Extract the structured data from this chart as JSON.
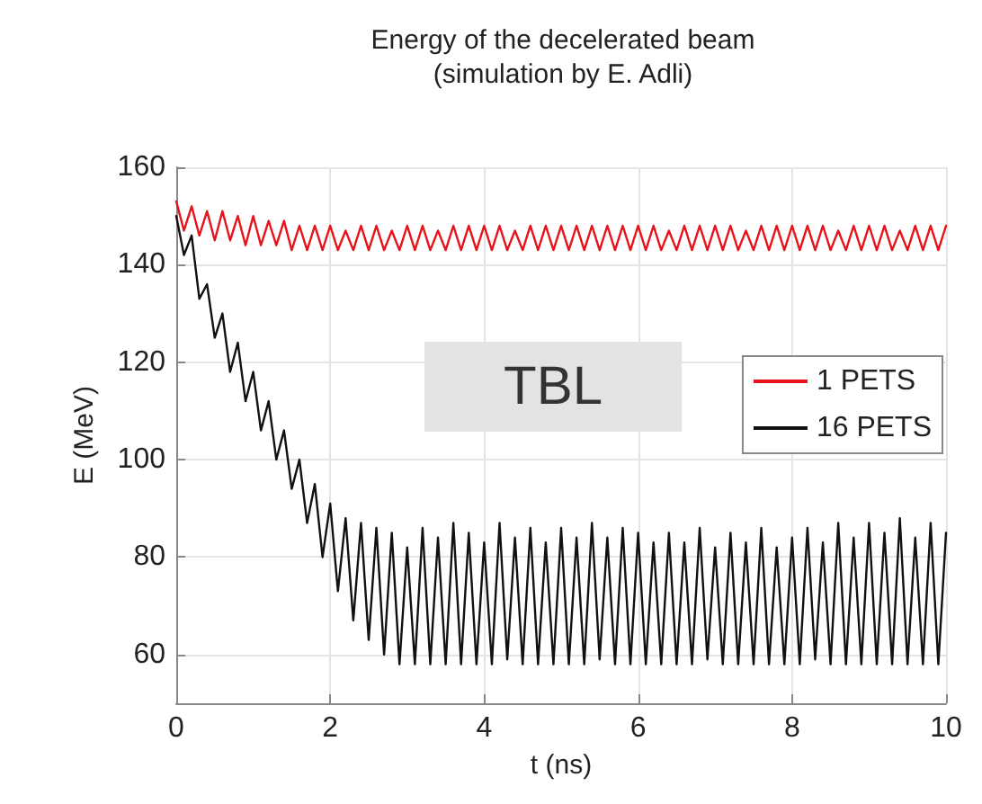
{
  "chart_data": {
    "type": "line",
    "title": "Energy of the decelerated beam",
    "subtitle": "(simulation by E. Adli)",
    "xlabel": "t (ns)",
    "ylabel": "E (MeV)",
    "annotations": [
      "TBL"
    ],
    "x": [
      0,
      0.1,
      0.2,
      0.3,
      0.4,
      0.5,
      0.6,
      0.7,
      0.8,
      0.9,
      1,
      1.1,
      1.2,
      1.3,
      1.4,
      1.5,
      1.6,
      1.7,
      1.8,
      1.9,
      2,
      2.1,
      2.2,
      2.3,
      2.4,
      2.5,
      2.6,
      2.7,
      2.8,
      2.9,
      3,
      3.1,
      3.2,
      3.3,
      3.4,
      3.5,
      3.6,
      3.7,
      3.8,
      3.9,
      4,
      4.1,
      4.2,
      4.3,
      4.4,
      4.5,
      4.6,
      4.7,
      4.8,
      4.9,
      5,
      5.1,
      5.2,
      5.3,
      5.4,
      5.5,
      5.6,
      5.7,
      5.8,
      5.9,
      6,
      6.1,
      6.2,
      6.3,
      6.4,
      6.5,
      6.6,
      6.7,
      6.8,
      6.9,
      7,
      7.1,
      7.2,
      7.3,
      7.4,
      7.5,
      7.6,
      7.7,
      7.8,
      7.9,
      8,
      8.1,
      8.2,
      8.3,
      8.4,
      8.5,
      8.6,
      8.7,
      8.8,
      8.9,
      9,
      9.1,
      9.2,
      9.3,
      9.4,
      9.5,
      9.6,
      9.7,
      9.8,
      9.9,
      10
    ],
    "series": [
      {
        "name": "1 PETS",
        "color": "#e8121a",
        "values": [
          153,
          147,
          152,
          146,
          151,
          145,
          151,
          145,
          150,
          144,
          150,
          144,
          149,
          144,
          149,
          143,
          148,
          143,
          148,
          143,
          148,
          143,
          147,
          143,
          148,
          143,
          148,
          143,
          147,
          143,
          148,
          143,
          148,
          143,
          147,
          143,
          148,
          143,
          148,
          143,
          148,
          143,
          148,
          143,
          147,
          143,
          148,
          143,
          148,
          143,
          148,
          143,
          148,
          143,
          148,
          143,
          148,
          143,
          148,
          143,
          148,
          143,
          148,
          143,
          147,
          143,
          148,
          143,
          148,
          143,
          148,
          143,
          148,
          143,
          147,
          143,
          148,
          143,
          148,
          143,
          148,
          143,
          148,
          143,
          148,
          143,
          147,
          143,
          148,
          143,
          148,
          143,
          148,
          143,
          147,
          143,
          148,
          143,
          148,
          143,
          148
        ]
      },
      {
        "name": "16 PETS",
        "color": "#111111",
        "values": [
          150,
          142,
          146,
          133,
          136,
          125,
          130,
          118,
          124,
          112,
          118,
          106,
          112,
          100,
          106,
          94,
          100,
          87,
          95,
          80,
          91,
          73,
          88,
          67,
          87,
          63,
          86,
          60,
          85,
          58,
          82,
          58,
          86,
          58,
          84,
          58,
          87,
          58,
          85,
          58,
          83,
          58,
          87,
          59,
          84,
          58,
          86,
          58,
          83,
          58,
          86,
          58,
          84,
          58,
          87,
          59,
          84,
          58,
          86,
          58,
          85,
          58,
          83,
          58,
          85,
          58,
          83,
          58,
          86,
          59,
          82,
          58,
          85,
          58,
          83,
          58,
          86,
          58,
          82,
          58,
          84,
          58,
          86,
          59,
          83,
          58,
          87,
          58,
          84,
          58,
          87,
          58,
          85,
          58,
          88,
          58,
          84,
          58,
          87,
          58,
          85
        ]
      }
    ],
    "xlim": [
      0,
      10
    ],
    "xticks": [
      0,
      2,
      4,
      6,
      8,
      10
    ],
    "ylim": [
      50,
      160
    ],
    "yticks": [
      60,
      80,
      100,
      120,
      140,
      160
    ],
    "grid": true,
    "legend": "right",
    "marker": "none",
    "line_style": "solid"
  }
}
